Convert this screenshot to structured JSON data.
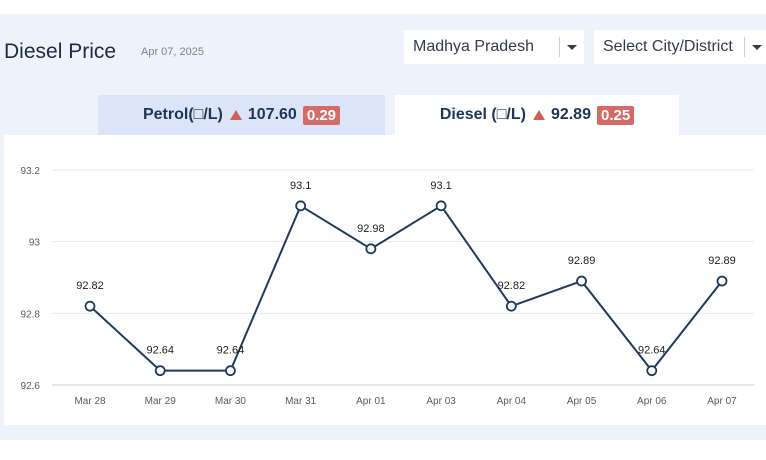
{
  "header": {
    "title": "Diesel Price",
    "date": "Apr 07, 2025"
  },
  "filters": {
    "state": "Madhya Pradesh",
    "city": "Select City/District"
  },
  "tabs": {
    "petrol": {
      "label": "Petrol(□/L)",
      "price": "107.60",
      "change": "0.29"
    },
    "diesel": {
      "label": "Diesel (□/L)",
      "price": "92.89",
      "change": "0.25"
    }
  },
  "colors": {
    "line": "#1f3a5f",
    "up_arrow": "#d0605a",
    "badge": "#d36b67"
  },
  "chart_data": {
    "type": "line",
    "categories": [
      "Mar 28",
      "Mar 29",
      "Mar 30",
      "Mar 31",
      "Apr 01",
      "Apr 03",
      "Apr 04",
      "Apr 05",
      "Apr 06",
      "Apr 07"
    ],
    "values": [
      92.82,
      92.64,
      92.64,
      93.1,
      92.98,
      93.1,
      92.82,
      92.89,
      92.64,
      92.89
    ],
    "data_labels": [
      "92.82",
      "92.64",
      "92.64",
      "93.1",
      "92.98",
      "93.1",
      "92.82",
      "92.89",
      "92.64",
      "92.89"
    ],
    "y_ticks": [
      "92.6",
      "92.8",
      "93",
      "93.2"
    ],
    "ylim": [
      92.6,
      93.2
    ],
    "grid": true,
    "legend": "none"
  }
}
